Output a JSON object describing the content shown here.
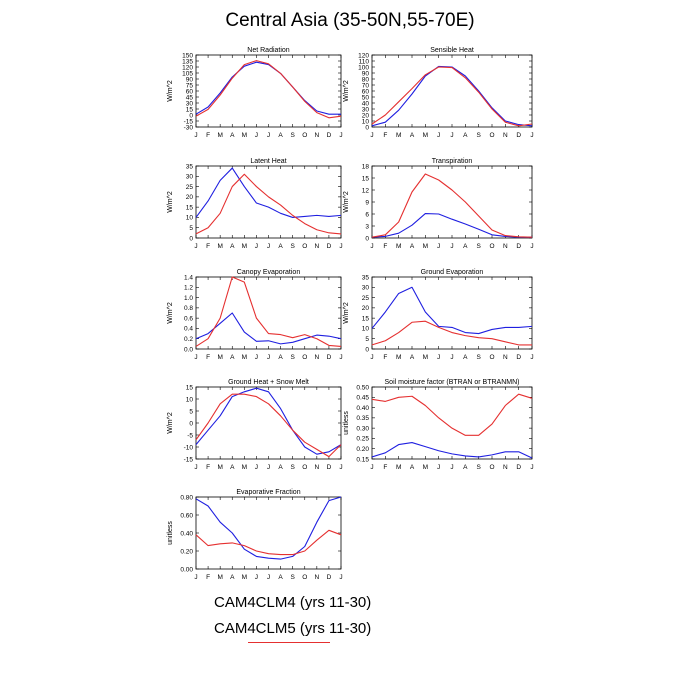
{
  "title": "Central Asia (35-50N,55-70E)",
  "legend": {
    "entries": [
      "CAM4CLM4 (yrs 11-30)",
      "CAM4CLM5 (yrs 11-30)"
    ],
    "colors": [
      "#1f1fe0",
      "#e53030"
    ]
  },
  "chart_data": [
    {
      "type": "line",
      "title": "Net Radiation",
      "ylabel": "W/m^2",
      "x": [
        "J",
        "F",
        "M",
        "A",
        "M",
        "J",
        "J",
        "A",
        "S",
        "O",
        "N",
        "D",
        "J"
      ],
      "ylim": [
        -30,
        150
      ],
      "yticks": [
        -30,
        -15,
        0,
        15,
        30,
        45,
        60,
        75,
        90,
        105,
        120,
        135,
        150
      ],
      "ytick_labels": [
        "-30",
        "-15",
        "0",
        "15",
        "30",
        "45",
        "60",
        "75",
        "90",
        "105",
        "120",
        "135",
        "150"
      ],
      "series": [
        {
          "values": [
            2,
            20,
            55,
            95,
            122,
            132,
            126,
            104,
            70,
            36,
            10,
            2,
            2
          ],
          "color": "#1f1fe0"
        },
        {
          "values": [
            -3,
            14,
            50,
            92,
            126,
            136,
            128,
            104,
            70,
            34,
            6,
            -7,
            -3
          ],
          "color": "#e53030"
        }
      ]
    },
    {
      "type": "line",
      "title": "Sensible Heat",
      "ylabel": "W/m^2",
      "x": [
        "J",
        "F",
        "M",
        "A",
        "M",
        "J",
        "J",
        "A",
        "S",
        "O",
        "N",
        "D",
        "J"
      ],
      "ylim": [
        0,
        120
      ],
      "yticks": [
        0,
        10,
        20,
        30,
        40,
        50,
        60,
        70,
        80,
        90,
        100,
        110,
        120
      ],
      "ytick_labels": [
        "0",
        "10",
        "20",
        "30",
        "40",
        "50",
        "60",
        "70",
        "80",
        "90",
        "100",
        "110",
        "120"
      ],
      "series": [
        {
          "values": [
            2,
            8,
            28,
            55,
            85,
            101,
            100,
            85,
            60,
            32,
            10,
            4,
            2
          ],
          "color": "#1f1fe0"
        },
        {
          "values": [
            5,
            20,
            42,
            64,
            87,
            100,
            99,
            82,
            58,
            30,
            8,
            2,
            5
          ],
          "color": "#e53030"
        }
      ]
    },
    {
      "type": "line",
      "title": "Latent Heat",
      "ylabel": "W/m^2",
      "x": [
        "J",
        "F",
        "M",
        "A",
        "M",
        "J",
        "J",
        "A",
        "S",
        "O",
        "N",
        "D",
        "J"
      ],
      "ylim": [
        0,
        35
      ],
      "yticks": [
        0,
        5,
        10,
        15,
        20,
        25,
        30,
        35
      ],
      "ytick_labels": [
        "0",
        "5",
        "10",
        "15",
        "20",
        "25",
        "30",
        "35"
      ],
      "series": [
        {
          "values": [
            10,
            18,
            28,
            34,
            25,
            17,
            15,
            12,
            10,
            10.5,
            11,
            10.5,
            11
          ],
          "color": "#1f1fe0"
        },
        {
          "values": [
            2,
            5,
            12,
            25,
            31,
            25,
            20,
            16,
            11,
            7,
            4,
            2.5,
            2
          ],
          "color": "#e53030"
        }
      ]
    },
    {
      "type": "line",
      "title": "Transpiration",
      "ylabel": "W/m^2",
      "x": [
        "J",
        "F",
        "M",
        "A",
        "M",
        "J",
        "J",
        "A",
        "S",
        "O",
        "N",
        "D",
        "J"
      ],
      "ylim": [
        0,
        18
      ],
      "yticks": [
        0,
        3,
        6,
        9,
        12,
        15,
        18
      ],
      "ytick_labels": [
        "0",
        "3",
        "6",
        "9",
        "12",
        "15",
        "18"
      ],
      "series": [
        {
          "values": [
            0.2,
            0.4,
            1.2,
            3.2,
            6.1,
            6.0,
            4.7,
            3.5,
            2.2,
            0.8,
            0.4,
            0.2,
            0.2
          ],
          "color": "#1f1fe0"
        },
        {
          "values": [
            0.2,
            0.8,
            4.0,
            11.5,
            16.0,
            14.5,
            12.0,
            9.0,
            5.5,
            2.0,
            0.6,
            0.3,
            0.2
          ],
          "color": "#e53030"
        }
      ]
    },
    {
      "type": "line",
      "title": "Canopy Evaporation",
      "ylabel": "W/m^2",
      "x": [
        "J",
        "F",
        "M",
        "A",
        "M",
        "J",
        "J",
        "A",
        "S",
        "O",
        "N",
        "D",
        "J"
      ],
      "ylim": [
        0,
        1.4
      ],
      "yticks": [
        0,
        0.2,
        0.4,
        0.6,
        0.8,
        1.0,
        1.2,
        1.4
      ],
      "ytick_labels": [
        "0.0",
        "0.2",
        "0.4",
        "0.6",
        "0.8",
        "1.0",
        "1.2",
        "1.4"
      ],
      "series": [
        {
          "values": [
            0.2,
            0.3,
            0.5,
            0.7,
            0.33,
            0.15,
            0.16,
            0.1,
            0.13,
            0.2,
            0.27,
            0.25,
            0.2
          ],
          "color": "#1f1fe0"
        },
        {
          "values": [
            0.05,
            0.2,
            0.6,
            1.4,
            1.3,
            0.6,
            0.3,
            0.28,
            0.22,
            0.28,
            0.2,
            0.07,
            0.05
          ],
          "color": "#e53030"
        }
      ]
    },
    {
      "type": "line",
      "title": "Ground Evaporation",
      "ylabel": "W/m^2",
      "x": [
        "J",
        "F",
        "M",
        "A",
        "M",
        "J",
        "J",
        "A",
        "S",
        "O",
        "N",
        "D",
        "J"
      ],
      "ylim": [
        0,
        35
      ],
      "yticks": [
        0,
        5,
        10,
        15,
        20,
        25,
        30,
        35
      ],
      "ytick_labels": [
        "0",
        "5",
        "10",
        "15",
        "20",
        "25",
        "30",
        "35"
      ],
      "series": [
        {
          "values": [
            10,
            18,
            27,
            30,
            18,
            11,
            10.5,
            8,
            7.5,
            9.5,
            10.5,
            10.5,
            11
          ],
          "color": "#1f1fe0"
        },
        {
          "values": [
            2,
            4,
            8,
            13,
            13.5,
            10.5,
            8,
            6.5,
            5.5,
            5,
            3.5,
            2,
            2
          ],
          "color": "#e53030"
        }
      ]
    },
    {
      "type": "line",
      "title": "Ground Heat + Snow Melt",
      "ylabel": "W/m^2",
      "x": [
        "J",
        "F",
        "M",
        "A",
        "M",
        "J",
        "J",
        "A",
        "S",
        "O",
        "N",
        "D",
        "J"
      ],
      "ylim": [
        -15,
        15
      ],
      "yticks": [
        -15,
        -10,
        -5,
        0,
        5,
        10,
        15
      ],
      "ytick_labels": [
        "-15",
        "-10",
        "-5",
        "0",
        "5",
        "10",
        "15"
      ],
      "series": [
        {
          "values": [
            -9,
            -3,
            3,
            11,
            13,
            14.5,
            13,
            6,
            -3,
            -10,
            -13,
            -12,
            -9
          ],
          "color": "#1f1fe0"
        },
        {
          "values": [
            -7,
            0,
            8,
            12,
            12,
            11,
            8,
            3,
            -3,
            -8,
            -11,
            -14,
            -9
          ],
          "color": "#e53030"
        }
      ]
    },
    {
      "type": "line",
      "title": "Soil moisture factor (BTRAN or BTRANMN)",
      "ylabel": "unitless",
      "x": [
        "J",
        "F",
        "M",
        "A",
        "M",
        "J",
        "J",
        "A",
        "S",
        "O",
        "N",
        "D",
        "J"
      ],
      "ylim": [
        0.15,
        0.5
      ],
      "yticks": [
        0.15,
        0.2,
        0.25,
        0.3,
        0.35,
        0.4,
        0.45,
        0.5
      ],
      "ytick_labels": [
        "0.15",
        "0.20",
        "0.25",
        "0.30",
        "0.35",
        "0.40",
        "0.45",
        "0.50"
      ],
      "series": [
        {
          "values": [
            0.16,
            0.18,
            0.22,
            0.23,
            0.21,
            0.19,
            0.175,
            0.165,
            0.16,
            0.17,
            0.185,
            0.185,
            0.155
          ],
          "color": "#1f1fe0"
        },
        {
          "values": [
            0.44,
            0.43,
            0.45,
            0.455,
            0.41,
            0.35,
            0.3,
            0.265,
            0.265,
            0.32,
            0.41,
            0.465,
            0.445
          ],
          "color": "#e53030"
        }
      ]
    },
    {
      "type": "line",
      "title": "Evaporative Fraction",
      "ylabel": "unitless",
      "x": [
        "J",
        "F",
        "M",
        "A",
        "M",
        "J",
        "J",
        "A",
        "S",
        "O",
        "N",
        "D",
        "J"
      ],
      "ylim": [
        0,
        0.8
      ],
      "yticks": [
        0,
        0.2,
        0.4,
        0.6,
        0.8
      ],
      "ytick_labels": [
        "0.00",
        "0.20",
        "0.40",
        "0.60",
        "0.80"
      ],
      "series": [
        {
          "values": [
            0.78,
            0.7,
            0.52,
            0.4,
            0.22,
            0.14,
            0.12,
            0.11,
            0.14,
            0.25,
            0.52,
            0.76,
            0.8
          ],
          "color": "#1f1fe0"
        },
        {
          "values": [
            0.38,
            0.26,
            0.28,
            0.29,
            0.26,
            0.2,
            0.17,
            0.16,
            0.16,
            0.2,
            0.32,
            0.43,
            0.38
          ],
          "color": "#e53030"
        }
      ]
    }
  ]
}
